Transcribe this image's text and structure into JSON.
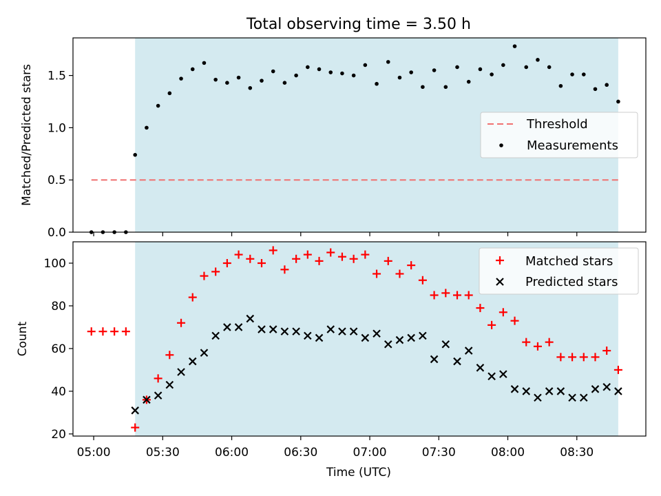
{
  "title": "Total observing time = 3.50 h",
  "colors": {
    "band": "#d4eaf0",
    "threshold": "#f07070",
    "measurements": "#000000",
    "matched": "#ff0000",
    "predicted": "#000000"
  },
  "chart_data": [
    {
      "type": "scatter",
      "title": "Total observing time = 3.50 h",
      "xlabel": "",
      "ylabel": "Matched/Predicted stars",
      "ylim": [
        0,
        1.86
      ],
      "yticks": [
        "0.0",
        "0.5",
        "1.0",
        "1.5"
      ],
      "ytick_values": [
        0,
        0.5,
        1.0,
        1.5
      ],
      "xticks_labels_shown": false,
      "shaded_span": {
        "x_start": "05:18",
        "x_end": "08:48"
      },
      "legend": "center-right",
      "threshold": {
        "name": "Threshold",
        "value": 0.5,
        "x_start": "04:59",
        "x_end": "08:48"
      },
      "series": [
        {
          "name": "Measurements",
          "x": [
            "04:59",
            "05:04",
            "05:09",
            "05:14",
            "05:18",
            "05:23",
            "05:28",
            "05:33",
            "05:38",
            "05:43",
            "05:48",
            "05:53",
            "05:58",
            "06:03",
            "06:08",
            "06:13",
            "06:18",
            "06:23",
            "06:28",
            "06:33",
            "06:38",
            "06:43",
            "06:48",
            "06:53",
            "06:58",
            "07:03",
            "07:08",
            "07:13",
            "07:18",
            "07:23",
            "07:28",
            "07:33",
            "07:38",
            "07:43",
            "07:48",
            "07:53",
            "07:58",
            "08:03",
            "08:08",
            "08:13",
            "08:18",
            "08:23",
            "08:28",
            "08:33",
            "08:38",
            "08:43",
            "08:48"
          ],
          "values": [
            0.0,
            0.0,
            0.0,
            0.0,
            0.74,
            1.0,
            1.21,
            1.33,
            1.47,
            1.56,
            1.62,
            1.46,
            1.43,
            1.48,
            1.38,
            1.45,
            1.54,
            1.43,
            1.5,
            1.58,
            1.56,
            1.53,
            1.52,
            1.5,
            1.6,
            1.42,
            1.63,
            1.48,
            1.53,
            1.39,
            1.55,
            1.39,
            1.58,
            1.44,
            1.56,
            1.51,
            1.6,
            1.78,
            1.58,
            1.65,
            1.58,
            1.4,
            1.51,
            1.51,
            1.37,
            1.41,
            1.25
          ]
        }
      ]
    },
    {
      "type": "scatter",
      "xlabel": "Time (UTC)",
      "ylabel": "Count",
      "ylim": [
        19,
        110
      ],
      "yticks": [
        "20",
        "40",
        "60",
        "80",
        "100"
      ],
      "ytick_values": [
        20,
        40,
        60,
        80,
        100
      ],
      "xlim": [
        "04:51",
        "09:00"
      ],
      "xticks": [
        "05:00",
        "05:30",
        "06:00",
        "06:30",
        "07:00",
        "07:30",
        "08:00",
        "08:30"
      ],
      "shaded_span": {
        "x_start": "05:18",
        "x_end": "08:48"
      },
      "legend": "top-right",
      "series": [
        {
          "name": "Matched stars",
          "x": [
            "04:59",
            "05:04",
            "05:09",
            "05:14",
            "05:18",
            "05:23",
            "05:28",
            "05:33",
            "05:38",
            "05:43",
            "05:48",
            "05:53",
            "05:58",
            "06:03",
            "06:08",
            "06:13",
            "06:18",
            "06:23",
            "06:28",
            "06:33",
            "06:38",
            "06:43",
            "06:48",
            "06:53",
            "06:58",
            "07:03",
            "07:08",
            "07:13",
            "07:18",
            "07:23",
            "07:28",
            "07:33",
            "07:38",
            "07:43",
            "07:48",
            "07:53",
            "07:58",
            "08:03",
            "08:08",
            "08:13",
            "08:18",
            "08:23",
            "08:28",
            "08:33",
            "08:38",
            "08:43",
            "08:48"
          ],
          "values": [
            68,
            68,
            68,
            68,
            23,
            36,
            46,
            57,
            72,
            84,
            94,
            96,
            100,
            104,
            102,
            100,
            106,
            97,
            102,
            104,
            101,
            105,
            103,
            102,
            104,
            95,
            101,
            95,
            99,
            92,
            85,
            86,
            85,
            85,
            79,
            71,
            77,
            73,
            63,
            61,
            63,
            56,
            56,
            56,
            56,
            59,
            50
          ]
        },
        {
          "name": "Predicted stars",
          "x": [
            "05:18",
            "05:23",
            "05:28",
            "05:33",
            "05:38",
            "05:43",
            "05:48",
            "05:53",
            "05:58",
            "06:03",
            "06:08",
            "06:13",
            "06:18",
            "06:23",
            "06:28",
            "06:33",
            "06:38",
            "06:43",
            "06:48",
            "06:53",
            "06:58",
            "07:03",
            "07:08",
            "07:13",
            "07:18",
            "07:23",
            "07:28",
            "07:33",
            "07:38",
            "07:43",
            "07:48",
            "07:53",
            "07:58",
            "08:03",
            "08:08",
            "08:13",
            "08:18",
            "08:23",
            "08:28",
            "08:33",
            "08:38",
            "08:43",
            "08:48"
          ],
          "values": [
            31,
            36,
            38,
            43,
            49,
            54,
            58,
            66,
            70,
            70,
            74,
            69,
            69,
            68,
            68,
            66,
            65,
            69,
            68,
            68,
            65,
            67,
            62,
            64,
            65,
            66,
            55,
            62,
            54,
            59,
            51,
            47,
            48,
            41,
            40,
            37,
            40,
            40,
            37,
            37,
            41,
            42,
            40
          ]
        }
      ]
    }
  ]
}
